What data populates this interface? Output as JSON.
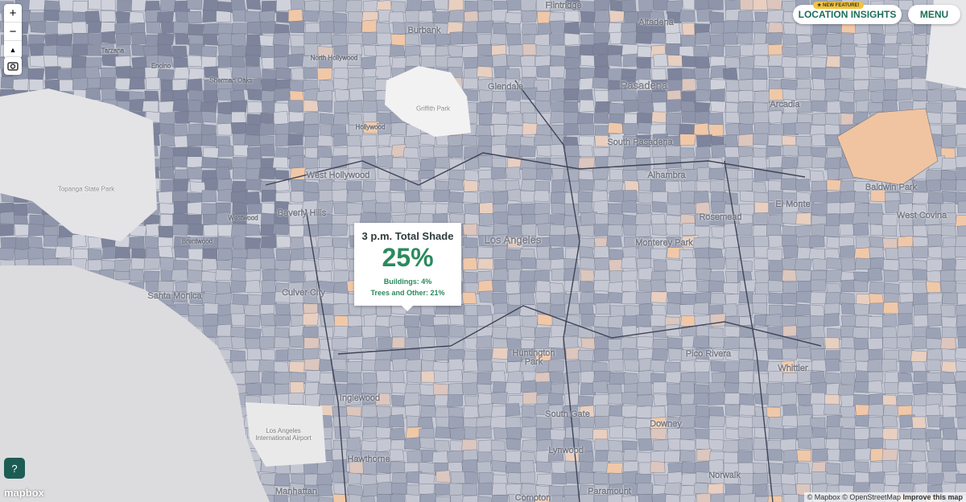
{
  "controls": {
    "zoom_in": "+",
    "zoom_out": "−",
    "compass": "▲",
    "help": "?"
  },
  "header": {
    "badge": "★ NEW FEATURE!",
    "location_insights": "LOCATION INSIGHTS",
    "menu": "MENU"
  },
  "tooltip": {
    "title": "3 p.m. Total Shade",
    "value": "25%",
    "buildings": "Buildings: 4%",
    "trees": "Trees and Other: 21%"
  },
  "places": [
    "Flintridge",
    "Altadena",
    "Burbank",
    "Tarzana",
    "Encino",
    "Sherman Oaks",
    "North Hollywood",
    "Glendale",
    "Pasadena",
    "Arcadia",
    "Griffith Park",
    "Hollywood",
    "South Pasadena",
    "West Hollywood",
    "Alhambra",
    "Topanga State Park",
    "Beverly Hills",
    "Westwood",
    "Baldwin Park",
    "El Monte",
    "Rosemead",
    "West Covina",
    "Brentwood",
    "Los Angeles",
    "Monterey Park",
    "Santa Monica",
    "Culver City",
    "Huntington Park",
    "Pico Rivera",
    "Whittier",
    "Inglewood",
    "South Gate",
    "Downey",
    "Los Angeles International Airport",
    "Lynwood",
    "Hawthorne",
    "Norwalk",
    "Manhattan",
    "Paramount",
    "Compton"
  ],
  "footer": {
    "logo": "mapbox",
    "attribution": "© Mapbox © OpenStreetMap",
    "improve": "Improve this map"
  }
}
